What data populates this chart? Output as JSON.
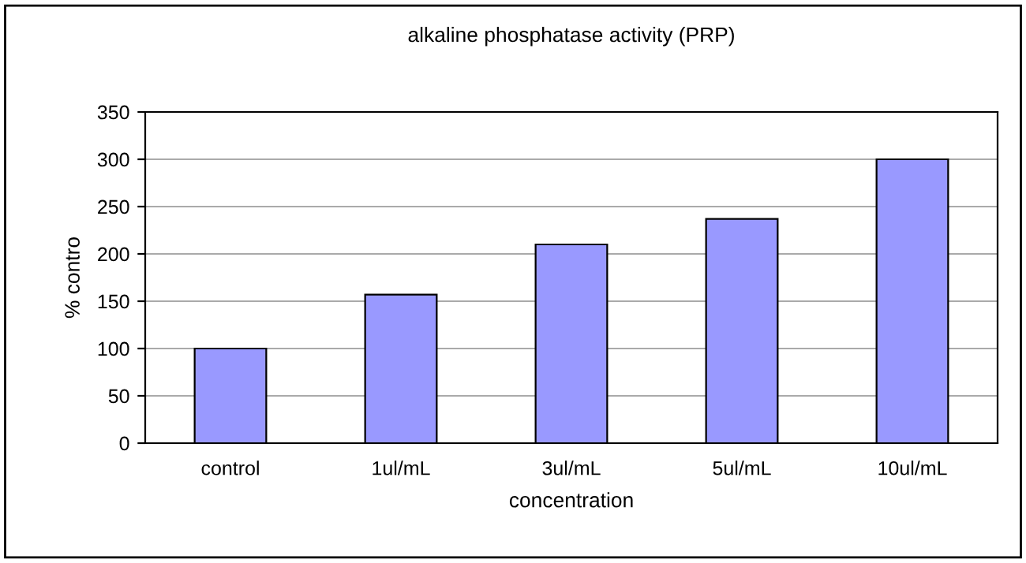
{
  "chart_data": {
    "type": "bar",
    "title": "alkaline phosphatase activity (PRP)",
    "xlabel": "concentration",
    "ylabel": "% contro",
    "categories": [
      "control",
      "1ul/mL",
      "3ul/mL",
      "5ul/mL",
      "10ul/mL"
    ],
    "values": [
      100,
      157,
      210,
      237,
      300
    ],
    "color": "#9999ff",
    "ylim": [
      0,
      350
    ],
    "yticks": [
      0,
      50,
      100,
      150,
      200,
      250,
      300,
      350
    ],
    "grid": "y"
  }
}
